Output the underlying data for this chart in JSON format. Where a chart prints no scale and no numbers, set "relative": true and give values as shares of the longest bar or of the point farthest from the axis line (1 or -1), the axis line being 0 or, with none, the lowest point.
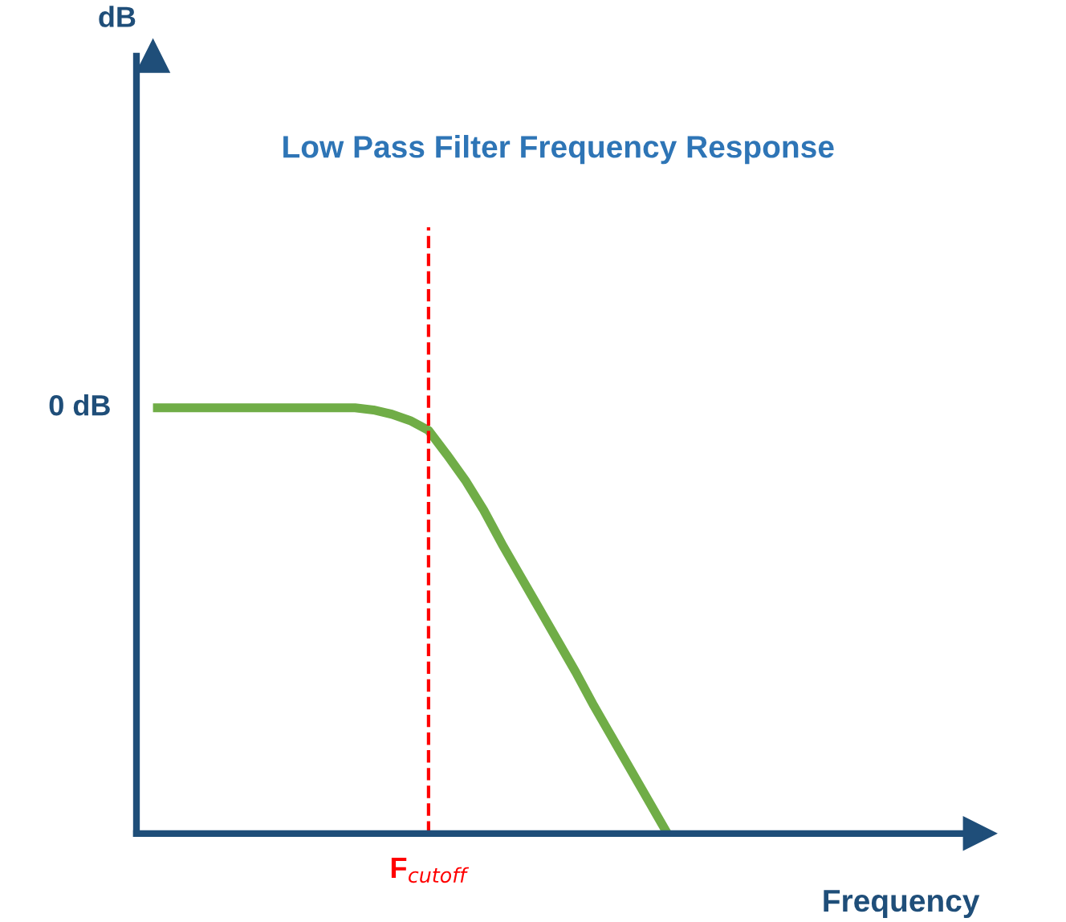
{
  "chart_data": {
    "type": "line",
    "title": "Low Pass Filter Frequency Response",
    "xlabel": "Frequency",
    "relative": true,
    "categories": [
      null,
      null,
      null,
      null,
      null,
      null,
      null,
      null,
      null,
      null,
      null,
      null,
      null,
      null,
      null,
      null,
      null,
      null,
      null,
      null,
      null,
      null,
      null,
      null,
      null,
      null,
      null,
      null,
      null,
      null,
      null,
      null,
      null,
      null,
      null,
      null,
      null,
      null,
      null,
      null,
      null,
      null,
      null,
      null,
      null,
      null
    ],
    "series": [
      {
        "color": "#70ad47",
        "values": [
          1,
          1,
          1,
          1,
          1,
          1,
          1,
          1,
          1,
          1,
          1,
          1,
          0.995,
          0.985,
          0.97,
          0.947,
          0.89,
          0.83,
          0.76,
          0.68,
          0.605,
          0.53,
          0.455,
          0.38,
          0.3,
          0.225,
          0.15,
          0.075,
          0,
          null,
          null,
          null,
          null,
          null,
          null,
          null,
          null,
          null,
          null,
          null,
          null,
          null,
          null,
          null,
          null,
          null
        ]
      }
    ],
    "annotations": [
      "dB",
      "0 dB",
      "F$_{cutoff}$"
    ],
    "marker": "none",
    "line_style": "solid"
  }
}
